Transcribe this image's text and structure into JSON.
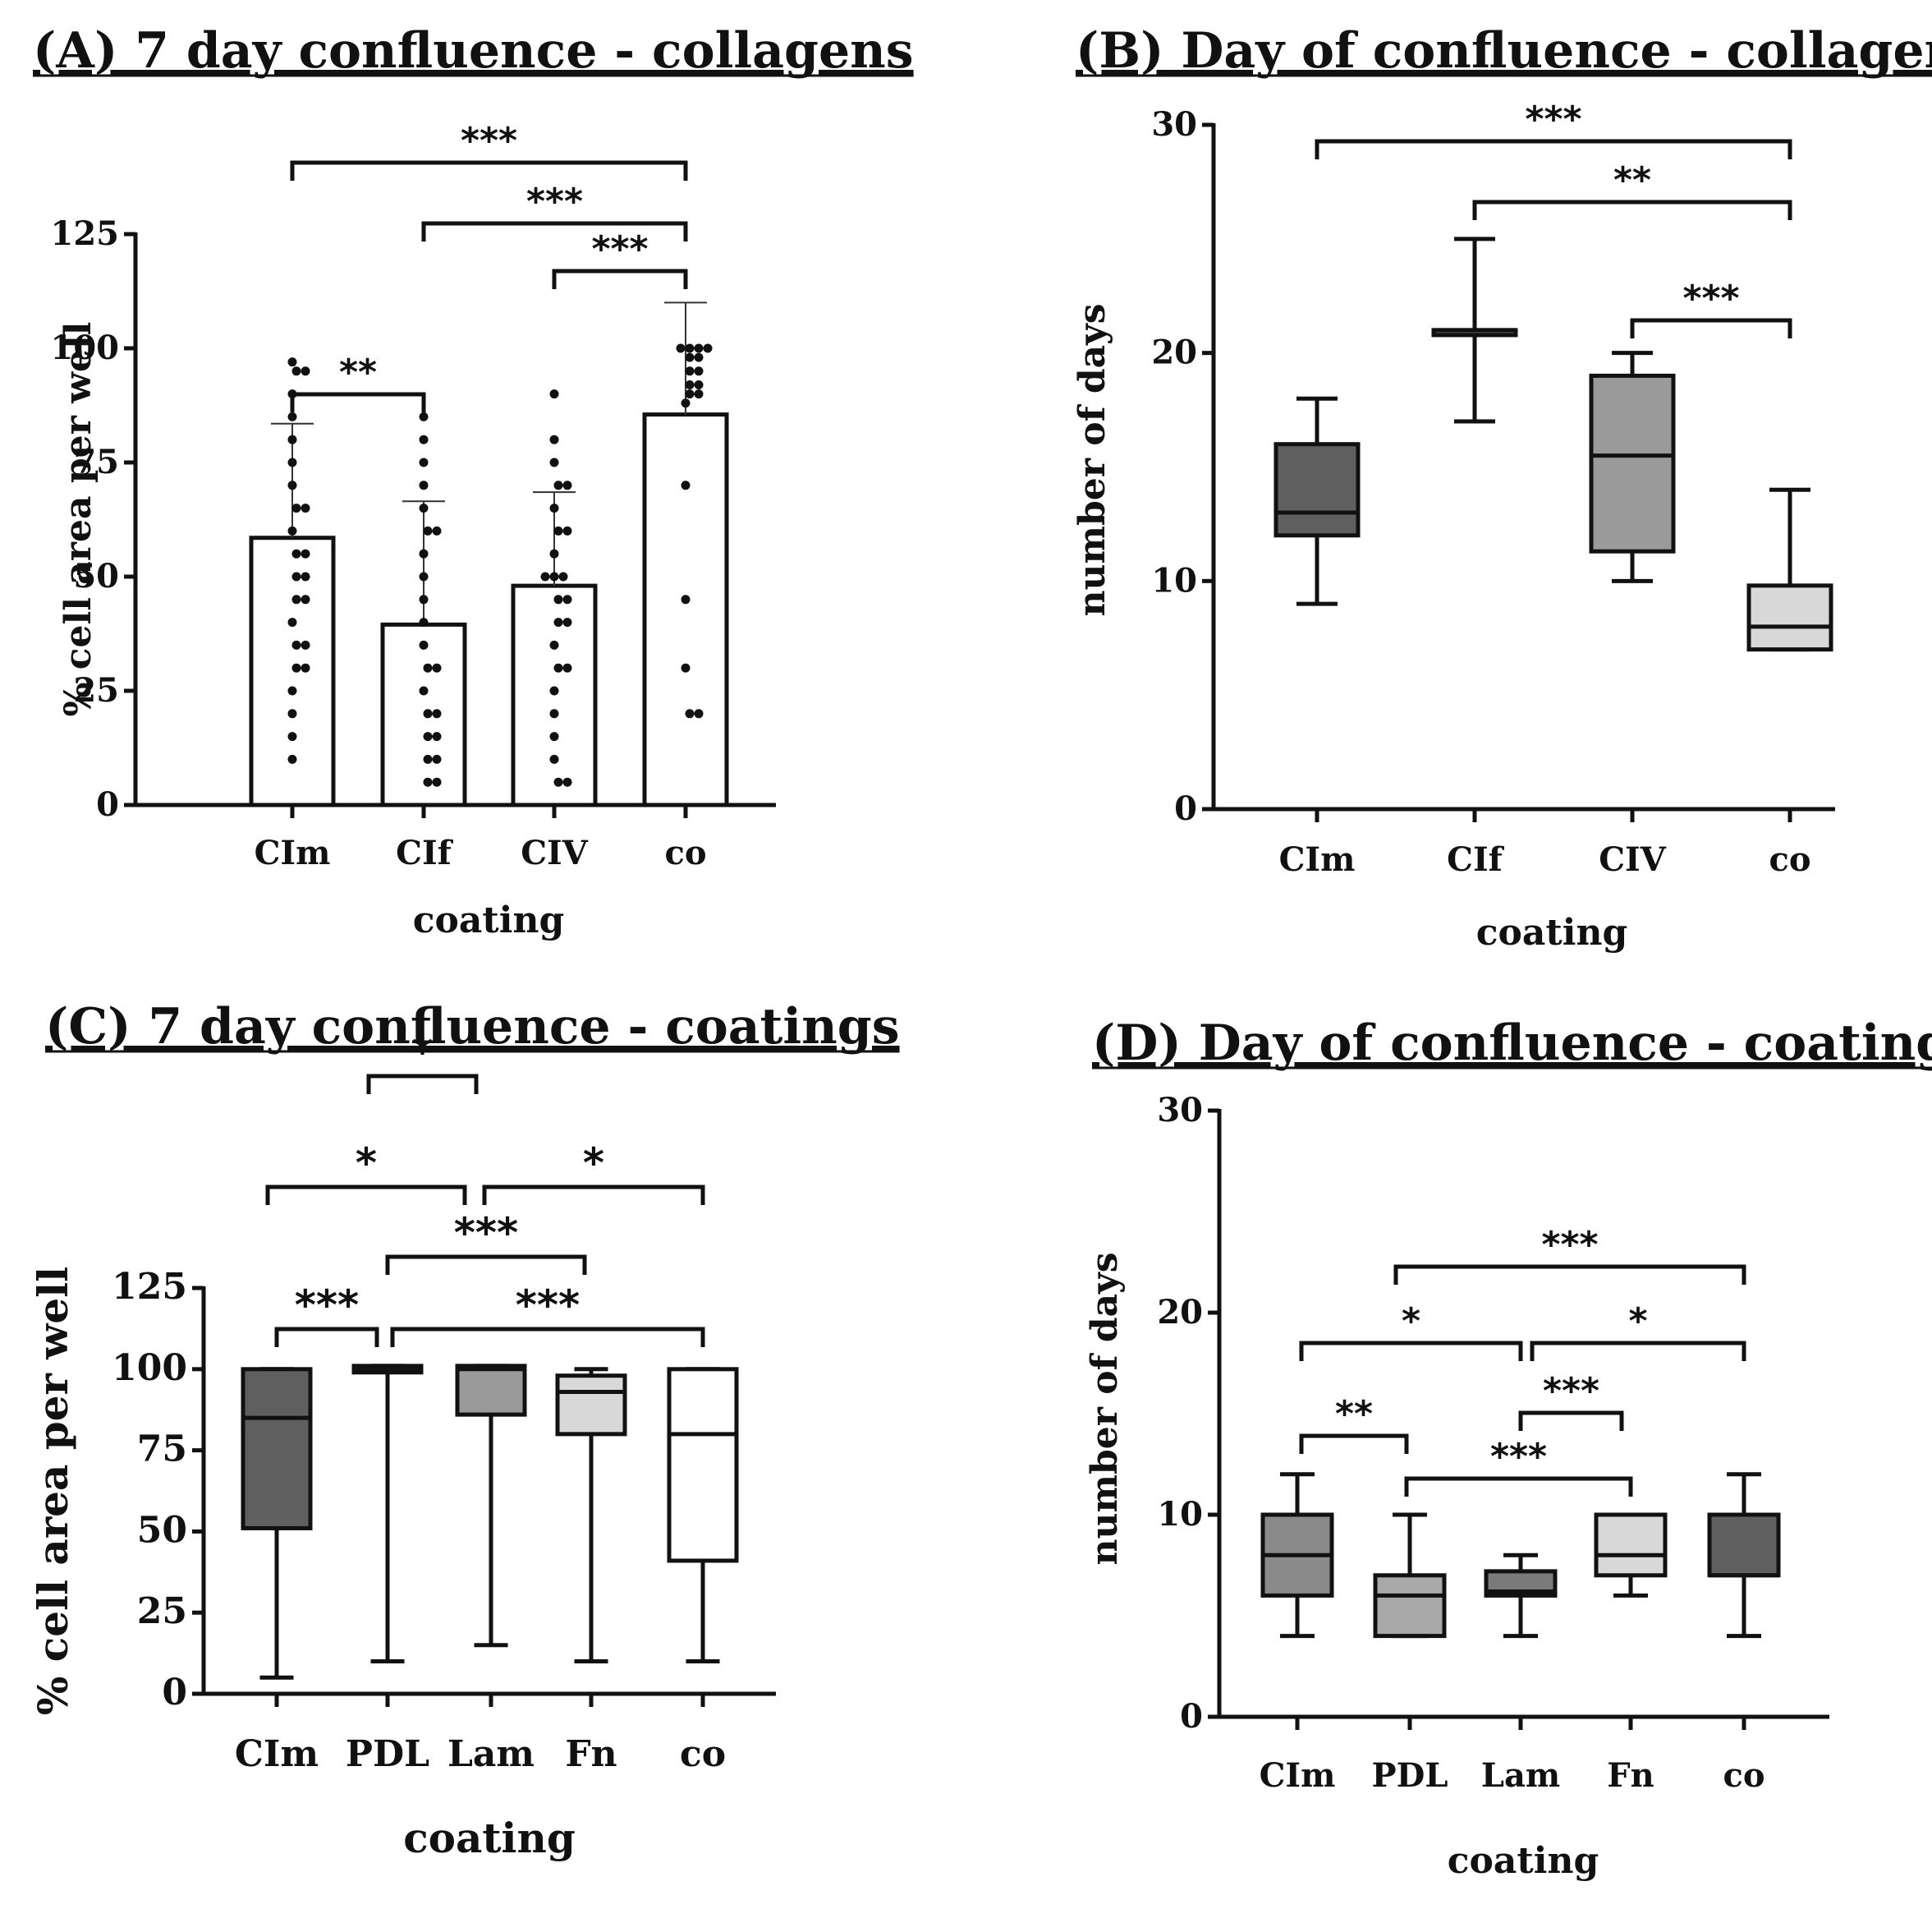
{
  "chart_data": [
    {
      "id": "A",
      "type": "bar",
      "title": "(A) 7 day confluence - collagens",
      "xlabel": "coating",
      "ylabel": "% cell area per well",
      "ylim": [
        0,
        125
      ],
      "yticks": [
        0,
        25,
        50,
        75,
        100,
        125
      ],
      "categories": [
        "CIm",
        "CIf",
        "CIV",
        "co"
      ],
      "values": [
        58.5,
        39.5,
        48,
        85.5
      ],
      "sd": [
        25,
        27,
        20.5,
        24.5
      ],
      "points": [
        [
          97,
          95,
          95,
          90,
          85,
          80,
          75,
          70,
          65,
          65,
          60,
          55,
          55,
          50,
          50,
          45,
          45,
          40,
          35,
          35,
          30,
          30,
          25,
          20,
          15,
          10
        ],
        [
          85,
          80,
          75,
          70,
          65,
          60,
          60,
          55,
          50,
          45,
          40,
          35,
          30,
          30,
          25,
          20,
          20,
          15,
          15,
          10,
          10,
          5,
          5
        ],
        [
          90,
          80,
          75,
          70,
          70,
          65,
          60,
          60,
          55,
          50,
          50,
          50,
          45,
          45,
          40,
          40,
          35,
          30,
          30,
          25,
          20,
          15,
          10,
          5,
          5
        ],
        [
          100,
          100,
          100,
          100,
          98,
          98,
          95,
          95,
          92,
          92,
          90,
          90,
          88,
          70,
          45,
          30,
          20,
          20
        ]
      ],
      "significance": [
        {
          "from": 0,
          "to": 3,
          "label": "***"
        },
        {
          "from": 1,
          "to": 3,
          "label": "***"
        },
        {
          "from": 2,
          "to": 3,
          "label": "***"
        },
        {
          "from": 0,
          "to": 1,
          "label": "**"
        }
      ]
    },
    {
      "id": "B",
      "type": "box",
      "title": "(B) Day of confluence - collagens",
      "xlabel": "coating",
      "ylabel": "number of days",
      "ylim": [
        0,
        30
      ],
      "yticks": [
        0,
        10,
        20,
        30
      ],
      "categories": [
        "CIm",
        "CIf",
        "CIV",
        "co"
      ],
      "boxes": [
        {
          "min": 9,
          "q1": 12,
          "median": 13,
          "q3": 16,
          "max": 18,
          "color": "#5f5f5f"
        },
        {
          "min": 17,
          "q1": 21,
          "median": 21,
          "q3": 21,
          "max": 25,
          "color": "#5f5f5f"
        },
        {
          "min": 10,
          "q1": 11.3,
          "median": 15.5,
          "q3": 19,
          "max": 20,
          "color": "#9a9a9a"
        },
        {
          "min": 7,
          "q1": 7,
          "median": 8,
          "q3": 9.8,
          "max": 14,
          "color": "#d8d8d8"
        }
      ],
      "significance": [
        {
          "from": 0,
          "to": 3,
          "label": "***"
        },
        {
          "from": 1,
          "to": 3,
          "label": "**"
        },
        {
          "from": 2,
          "to": 3,
          "label": "***"
        }
      ]
    },
    {
      "id": "C",
      "type": "box",
      "title": "(C) 7 day confluence - coatings",
      "xlabel": "coating",
      "ylabel": "% cell area per well",
      "ylim": [
        0,
        125
      ],
      "yticks": [
        0,
        25,
        50,
        75,
        100,
        125
      ],
      "categories": [
        "CIm",
        "PDL",
        "Lam",
        "Fn",
        "co"
      ],
      "boxes": [
        {
          "min": 5,
          "q1": 51,
          "median": 85,
          "q3": 100,
          "max": 100,
          "color": "#5f5f5f"
        },
        {
          "min": 10,
          "q1": 99,
          "median": 100,
          "q3": 101,
          "max": 101,
          "color": "#5f5f5f"
        },
        {
          "min": 15,
          "q1": 86,
          "median": 100,
          "q3": 101,
          "max": 101,
          "color": "#9a9a9a"
        },
        {
          "min": 10,
          "q1": 80,
          "median": 93,
          "q3": 98,
          "max": 100,
          "color": "#d8d8d8"
        },
        {
          "min": 10,
          "q1": 41,
          "median": 80,
          "q3": 100,
          "max": 100,
          "color": "#ffffff"
        }
      ],
      "significance": [
        {
          "from": 0,
          "to": 1,
          "label": "***"
        },
        {
          "from": 1,
          "to": 4,
          "label": "***"
        },
        {
          "from": 1,
          "to": 3,
          "label": "***"
        },
        {
          "from": 0,
          "to": 2,
          "label": "*"
        },
        {
          "from": 2,
          "to": 4,
          "label": "*"
        },
        {
          "from": 1,
          "to": 2,
          "label": "*"
        }
      ]
    },
    {
      "id": "D",
      "type": "box",
      "title": "(D) Day of confluence - coatings",
      "xlabel": "coating",
      "ylabel": "number of days",
      "ylim": [
        0,
        30
      ],
      "yticks": [
        0,
        10,
        20,
        30
      ],
      "categories": [
        "CIm",
        "PDL",
        "Lam",
        "Fn",
        "co"
      ],
      "boxes": [
        {
          "min": 4,
          "q1": 6,
          "median": 8,
          "q3": 10,
          "max": 12,
          "color": "#8a8a8a"
        },
        {
          "min": 4,
          "q1": 4,
          "median": 6,
          "q3": 7,
          "max": 10,
          "color": "#a8a8a8"
        },
        {
          "min": 4,
          "q1": 6,
          "median": 6.2,
          "q3": 7.2,
          "max": 8,
          "color": "#7a7a7a"
        },
        {
          "min": 6,
          "q1": 7,
          "median": 8,
          "q3": 10,
          "max": 10,
          "color": "#d8d8d8"
        },
        {
          "min": 4,
          "q1": 7,
          "median": 7,
          "q3": 10,
          "max": 12,
          "color": "#5f5f5f"
        }
      ],
      "significance": [
        {
          "from": 1,
          "to": 4,
          "label": "***"
        },
        {
          "from": 0,
          "to": 2,
          "label": "*"
        },
        {
          "from": 2,
          "to": 4,
          "label": "*"
        },
        {
          "from": 2,
          "to": 3,
          "label": "***"
        },
        {
          "from": 0,
          "to": 1,
          "label": "**"
        },
        {
          "from": 1,
          "to": 3,
          "label": "***"
        }
      ]
    }
  ]
}
